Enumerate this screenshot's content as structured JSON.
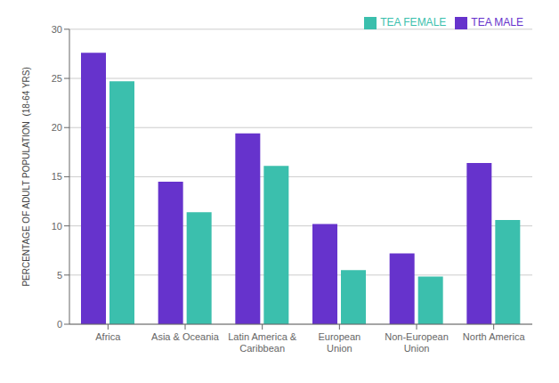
{
  "chart_data": {
    "type": "bar",
    "categories": [
      "Africa",
      "Asia & Oceania",
      "Latin America &\nCaribbean",
      "European\nUnion",
      "Non-European\nUnion",
      "North America"
    ],
    "series": [
      {
        "name": "TEA MALE",
        "color": "#6633cc",
        "values": [
          27.6,
          14.5,
          19.4,
          10.2,
          7.2,
          16.4
        ]
      },
      {
        "name": "TEA FEMALE",
        "color": "#3bbfad",
        "values": [
          24.7,
          11.4,
          16.1,
          5.5,
          4.85,
          10.6
        ]
      }
    ],
    "ylabel": "PERCENTAGE OF ADULT POPULATION  (18-64 YRS)",
    "ylim": [
      0,
      30
    ],
    "yticks": [
      0,
      5,
      10,
      15,
      20,
      25,
      30
    ],
    "grid": true,
    "legend": "upper right"
  }
}
